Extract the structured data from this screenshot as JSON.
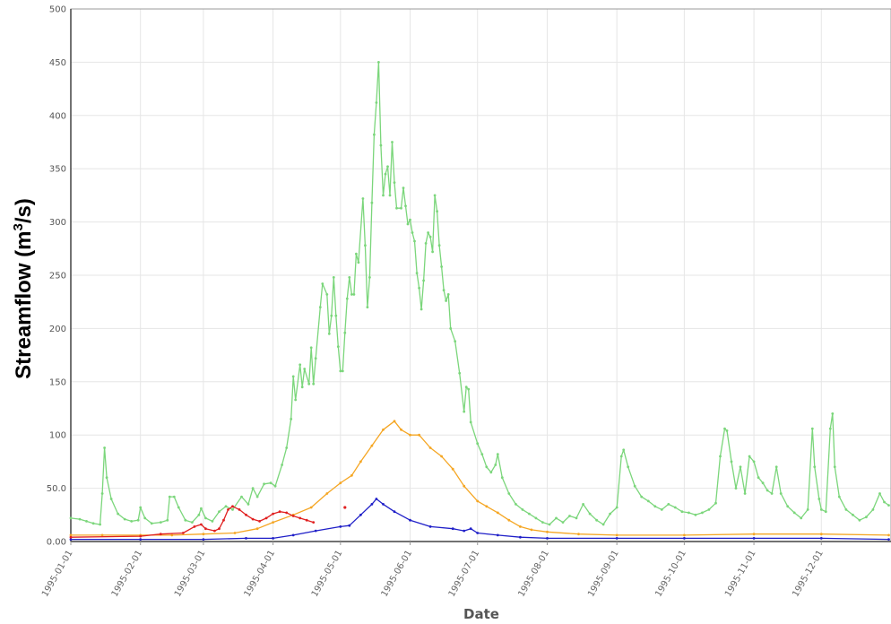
{
  "chart_data": {
    "type": "line",
    "xlabel": "Date",
    "ylabel_main": "Streamflow (m",
    "ylabel_sup": "3",
    "ylabel_end": "/s)",
    "ylim": [
      0,
      500
    ],
    "xlim": [
      "1995-01-01",
      "1995-12-31"
    ],
    "y_ticks": [
      "0.00",
      "50.0",
      "100",
      "150",
      "200",
      "250",
      "300",
      "350",
      "400",
      "450",
      "500"
    ],
    "x_ticks": [
      "1995-01-01",
      "1995-02-01",
      "1995-03-01",
      "1995-04-01",
      "1995-05-01",
      "1995-06-01",
      "1995-07-01",
      "1995-08-01",
      "1995-09-01",
      "1995-10-01",
      "1995-11-01",
      "1995-12-01"
    ],
    "grid": true,
    "series": [
      {
        "color": "#7bd67b",
        "points": [
          [
            "1995-01-01",
            22
          ],
          [
            "1995-01-05",
            21
          ],
          [
            "1995-01-08",
            19
          ],
          [
            "1995-01-11",
            17
          ],
          [
            "1995-01-14",
            16
          ],
          [
            "1995-01-15",
            45
          ],
          [
            "1995-01-16",
            88
          ],
          [
            "1995-01-17",
            60
          ],
          [
            "1995-01-19",
            40
          ],
          [
            "1995-01-22",
            26
          ],
          [
            "1995-01-25",
            21
          ],
          [
            "1995-01-28",
            19
          ],
          [
            "1995-01-31",
            20
          ],
          [
            "1995-02-01",
            32
          ],
          [
            "1995-02-03",
            22
          ],
          [
            "1995-02-06",
            17
          ],
          [
            "1995-02-10",
            18
          ],
          [
            "1995-02-13",
            20
          ],
          [
            "1995-02-14",
            42
          ],
          [
            "1995-02-16",
            42
          ],
          [
            "1995-02-18",
            32
          ],
          [
            "1995-02-21",
            20
          ],
          [
            "1995-02-24",
            18
          ],
          [
            "1995-02-27",
            25
          ],
          [
            "1995-02-28",
            31
          ],
          [
            "1995-03-02",
            22
          ],
          [
            "1995-03-05",
            19
          ],
          [
            "1995-03-08",
            28
          ],
          [
            "1995-03-11",
            33
          ],
          [
            "1995-03-14",
            30
          ],
          [
            "1995-03-18",
            42
          ],
          [
            "1995-03-21",
            35
          ],
          [
            "1995-03-23",
            50
          ],
          [
            "1995-03-25",
            42
          ],
          [
            "1995-03-28",
            54
          ],
          [
            "1995-03-31",
            55
          ],
          [
            "1995-04-02",
            52
          ],
          [
            "1995-04-05",
            72
          ],
          [
            "1995-04-07",
            88
          ],
          [
            "1995-04-09",
            115
          ],
          [
            "1995-04-10",
            155
          ],
          [
            "1995-04-11",
            133
          ],
          [
            "1995-04-13",
            166
          ],
          [
            "1995-04-14",
            145
          ],
          [
            "1995-04-15",
            162
          ],
          [
            "1995-04-17",
            148
          ],
          [
            "1995-04-18",
            182
          ],
          [
            "1995-04-19",
            148
          ],
          [
            "1995-04-20",
            172
          ],
          [
            "1995-04-22",
            220
          ],
          [
            "1995-04-23",
            242
          ],
          [
            "1995-04-25",
            232
          ],
          [
            "1995-04-26",
            195
          ],
          [
            "1995-04-27",
            212
          ],
          [
            "1995-04-28",
            248
          ],
          [
            "1995-04-29",
            212
          ],
          [
            "1995-04-30",
            183
          ],
          [
            "1995-05-01",
            160
          ],
          [
            "1995-05-02",
            160
          ],
          [
            "1995-05-03",
            196
          ],
          [
            "1995-05-04",
            228
          ],
          [
            "1995-05-05",
            248
          ],
          [
            "1995-05-06",
            232
          ],
          [
            "1995-05-07",
            232
          ],
          [
            "1995-05-08",
            270
          ],
          [
            "1995-05-09",
            262
          ],
          [
            "1995-05-11",
            322
          ],
          [
            "1995-05-12",
            278
          ],
          [
            "1995-05-13",
            220
          ],
          [
            "1995-05-14",
            248
          ],
          [
            "1995-05-15",
            318
          ],
          [
            "1995-05-16",
            382
          ],
          [
            "1995-05-17",
            412
          ],
          [
            "1995-05-18",
            450
          ],
          [
            "1995-05-19",
            372
          ],
          [
            "1995-05-20",
            325
          ],
          [
            "1995-05-21",
            345
          ],
          [
            "1995-05-22",
            352
          ],
          [
            "1995-05-23",
            325
          ],
          [
            "1995-05-24",
            375
          ],
          [
            "1995-05-25",
            337
          ],
          [
            "1995-05-26",
            313
          ],
          [
            "1995-05-28",
            313
          ],
          [
            "1995-05-29",
            332
          ],
          [
            "1995-05-30",
            315
          ],
          [
            "1995-05-31",
            298
          ],
          [
            "1995-06-01",
            302
          ],
          [
            "1995-06-02",
            290
          ],
          [
            "1995-06-03",
            282
          ],
          [
            "1995-06-04",
            252
          ],
          [
            "1995-06-05",
            238
          ],
          [
            "1995-06-06",
            218
          ],
          [
            "1995-06-07",
            245
          ],
          [
            "1995-06-08",
            280
          ],
          [
            "1995-06-09",
            290
          ],
          [
            "1995-06-10",
            286
          ],
          [
            "1995-06-11",
            272
          ],
          [
            "1995-06-12",
            325
          ],
          [
            "1995-06-13",
            310
          ],
          [
            "1995-06-14",
            278
          ],
          [
            "1995-06-15",
            258
          ],
          [
            "1995-06-16",
            236
          ],
          [
            "1995-06-17",
            226
          ],
          [
            "1995-06-18",
            232
          ],
          [
            "1995-06-19",
            200
          ],
          [
            "1995-06-21",
            188
          ],
          [
            "1995-06-23",
            158
          ],
          [
            "1995-06-25",
            122
          ],
          [
            "1995-06-26",
            145
          ],
          [
            "1995-06-27",
            143
          ],
          [
            "1995-06-28",
            112
          ],
          [
            "1995-07-01",
            92
          ],
          [
            "1995-07-03",
            82
          ],
          [
            "1995-07-05",
            70
          ],
          [
            "1995-07-07",
            65
          ],
          [
            "1995-07-09",
            72
          ],
          [
            "1995-07-10",
            82
          ],
          [
            "1995-07-12",
            60
          ],
          [
            "1995-07-15",
            45
          ],
          [
            "1995-07-18",
            35
          ],
          [
            "1995-07-21",
            30
          ],
          [
            "1995-07-24",
            26
          ],
          [
            "1995-07-27",
            22
          ],
          [
            "1995-07-30",
            18
          ],
          [
            "1995-08-02",
            16
          ],
          [
            "1995-08-05",
            22
          ],
          [
            "1995-08-08",
            18
          ],
          [
            "1995-08-11",
            24
          ],
          [
            "1995-08-14",
            22
          ],
          [
            "1995-08-17",
            35
          ],
          [
            "1995-08-20",
            26
          ],
          [
            "1995-08-23",
            20
          ],
          [
            "1995-08-26",
            16
          ],
          [
            "1995-08-29",
            26
          ],
          [
            "1995-09-01",
            32
          ],
          [
            "1995-09-03",
            80
          ],
          [
            "1995-09-04",
            86
          ],
          [
            "1995-09-06",
            70
          ],
          [
            "1995-09-09",
            52
          ],
          [
            "1995-09-12",
            42
          ],
          [
            "1995-09-15",
            38
          ],
          [
            "1995-09-18",
            33
          ],
          [
            "1995-09-21",
            30
          ],
          [
            "1995-09-24",
            35
          ],
          [
            "1995-09-27",
            32
          ],
          [
            "1995-09-30",
            28
          ],
          [
            "1995-10-03",
            27
          ],
          [
            "1995-10-06",
            25
          ],
          [
            "1995-10-09",
            27
          ],
          [
            "1995-10-12",
            30
          ],
          [
            "1995-10-15",
            36
          ],
          [
            "1995-10-17",
            80
          ],
          [
            "1995-10-19",
            106
          ],
          [
            "1995-10-20",
            104
          ],
          [
            "1995-10-22",
            75
          ],
          [
            "1995-10-24",
            50
          ],
          [
            "1995-10-26",
            70
          ],
          [
            "1995-10-28",
            45
          ],
          [
            "1995-10-30",
            80
          ],
          [
            "1995-11-01",
            75
          ],
          [
            "1995-11-03",
            60
          ],
          [
            "1995-11-05",
            55
          ],
          [
            "1995-11-07",
            48
          ],
          [
            "1995-11-09",
            45
          ],
          [
            "1995-11-11",
            70
          ],
          [
            "1995-11-13",
            45
          ],
          [
            "1995-11-16",
            33
          ],
          [
            "1995-11-19",
            27
          ],
          [
            "1995-11-22",
            22
          ],
          [
            "1995-11-25",
            30
          ],
          [
            "1995-11-27",
            106
          ],
          [
            "1995-11-28",
            70
          ],
          [
            "1995-11-30",
            40
          ],
          [
            "1995-12-01",
            30
          ],
          [
            "1995-12-03",
            28
          ],
          [
            "1995-12-05",
            106
          ],
          [
            "1995-12-06",
            120
          ],
          [
            "1995-12-07",
            70
          ],
          [
            "1995-12-09",
            42
          ],
          [
            "1995-12-12",
            30
          ],
          [
            "1995-12-15",
            25
          ],
          [
            "1995-12-18",
            20
          ],
          [
            "1995-12-21",
            23
          ],
          [
            "1995-12-24",
            30
          ],
          [
            "1995-12-27",
            45
          ],
          [
            "1995-12-29",
            37
          ],
          [
            "1995-12-31",
            34
          ]
        ]
      },
      {
        "color": "#f5a623",
        "points": [
          [
            "1995-01-01",
            6
          ],
          [
            "1995-01-15",
            6
          ],
          [
            "1995-02-01",
            6
          ],
          [
            "1995-02-15",
            6
          ],
          [
            "1995-03-01",
            7
          ],
          [
            "1995-03-15",
            8
          ],
          [
            "1995-03-25",
            12
          ],
          [
            "1995-04-01",
            18
          ],
          [
            "1995-04-10",
            25
          ],
          [
            "1995-04-18",
            32
          ],
          [
            "1995-04-25",
            45
          ],
          [
            "1995-05-01",
            55
          ],
          [
            "1995-05-06",
            62
          ],
          [
            "1995-05-10",
            75
          ],
          [
            "1995-05-15",
            90
          ],
          [
            "1995-05-20",
            105
          ],
          [
            "1995-05-25",
            113
          ],
          [
            "1995-05-28",
            105
          ],
          [
            "1995-06-01",
            100
          ],
          [
            "1995-06-05",
            100
          ],
          [
            "1995-06-10",
            88
          ],
          [
            "1995-06-15",
            80
          ],
          [
            "1995-06-20",
            68
          ],
          [
            "1995-06-25",
            52
          ],
          [
            "1995-07-01",
            38
          ],
          [
            "1995-07-05",
            33
          ],
          [
            "1995-07-10",
            27
          ],
          [
            "1995-07-15",
            20
          ],
          [
            "1995-07-20",
            14
          ],
          [
            "1995-07-25",
            11
          ],
          [
            "1995-08-01",
            9
          ],
          [
            "1995-08-15",
            7
          ],
          [
            "1995-09-01",
            6
          ],
          [
            "1995-10-01",
            6
          ],
          [
            "1995-11-01",
            7
          ],
          [
            "1995-12-01",
            7
          ],
          [
            "1995-12-31",
            6
          ]
        ]
      },
      {
        "color": "#1f1fc8",
        "points": [
          [
            "1995-01-01",
            2
          ],
          [
            "1995-02-01",
            2
          ],
          [
            "1995-03-01",
            2
          ],
          [
            "1995-03-20",
            3
          ],
          [
            "1995-04-01",
            3
          ],
          [
            "1995-04-10",
            6
          ],
          [
            "1995-04-20",
            10
          ],
          [
            "1995-05-01",
            14
          ],
          [
            "1995-05-05",
            15
          ],
          [
            "1995-05-10",
            25
          ],
          [
            "1995-05-15",
            35
          ],
          [
            "1995-05-17",
            40
          ],
          [
            "1995-05-20",
            35
          ],
          [
            "1995-05-25",
            28
          ],
          [
            "1995-06-01",
            20
          ],
          [
            "1995-06-10",
            14
          ],
          [
            "1995-06-20",
            12
          ],
          [
            "1995-06-25",
            10
          ],
          [
            "1995-06-28",
            12
          ],
          [
            "1995-07-01",
            8
          ],
          [
            "1995-07-10",
            6
          ],
          [
            "1995-07-20",
            4
          ],
          [
            "1995-08-01",
            3
          ],
          [
            "1995-09-01",
            3
          ],
          [
            "1995-10-01",
            3
          ],
          [
            "1995-11-01",
            3
          ],
          [
            "1995-12-01",
            3
          ],
          [
            "1995-12-31",
            2
          ]
        ]
      },
      {
        "color": "#e02020",
        "points": [
          [
            "1995-01-01",
            4
          ],
          [
            "1995-02-01",
            5
          ],
          [
            "1995-02-10",
            7
          ],
          [
            "1995-02-20",
            8
          ],
          [
            "1995-02-25",
            14
          ],
          [
            "1995-02-28",
            16
          ],
          [
            "1995-03-02",
            12
          ],
          [
            "1995-03-06",
            10
          ],
          [
            "1995-03-08",
            12
          ],
          [
            "1995-03-10",
            20
          ],
          [
            "1995-03-12",
            30
          ],
          [
            "1995-03-14",
            33
          ],
          [
            "1995-03-17",
            30
          ],
          [
            "1995-03-20",
            25
          ],
          [
            "1995-03-23",
            21
          ],
          [
            "1995-03-26",
            19
          ],
          [
            "1995-03-29",
            22
          ],
          [
            "1995-04-01",
            26
          ],
          [
            "1995-04-04",
            28
          ],
          [
            "1995-04-07",
            27
          ],
          [
            "1995-04-10",
            24
          ],
          [
            "1995-04-13",
            22
          ],
          [
            "1995-04-16",
            20
          ],
          [
            "1995-04-19",
            18
          ]
        ]
      }
    ],
    "isolated_points": [
      {
        "color": "#e02020",
        "x": "1995-05-03",
        "y": 32
      }
    ]
  }
}
